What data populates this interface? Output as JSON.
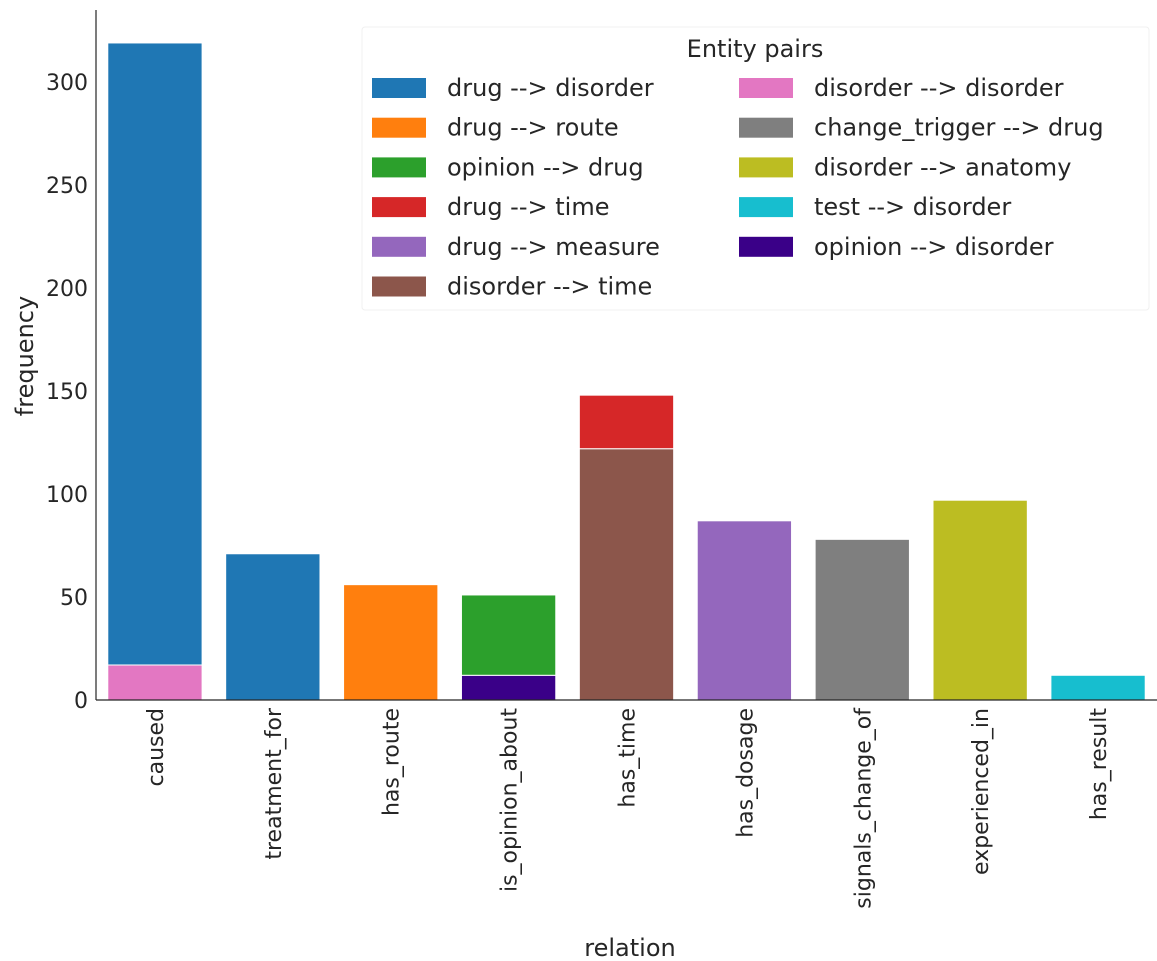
{
  "chart_data": {
    "type": "bar",
    "stacked": true,
    "xlabel": "relation",
    "ylabel": "frequency",
    "ylim": [
      0,
      335
    ],
    "yticks": [
      0,
      50,
      100,
      150,
      200,
      250,
      300
    ],
    "categories": [
      "caused",
      "treatment_for",
      "has_route",
      "is_opinion_about",
      "has_time",
      "has_dosage",
      "signals_change_of",
      "experienced_in",
      "has_result"
    ],
    "legend": {
      "title": "Entity pairs",
      "placement": "top-right",
      "columns": 2
    },
    "series": [
      {
        "name": "drug --> disorder",
        "color": "#1f77b4",
        "values": [
          302,
          71,
          0,
          0,
          0,
          0,
          0,
          0,
          0
        ]
      },
      {
        "name": "drug --> route",
        "color": "#ff7f0e",
        "values": [
          0,
          0,
          56,
          0,
          0,
          0,
          0,
          0,
          0
        ]
      },
      {
        "name": "opinion --> drug",
        "color": "#2ca02c",
        "values": [
          0,
          0,
          0,
          39,
          0,
          0,
          0,
          0,
          0
        ]
      },
      {
        "name": "drug --> time",
        "color": "#d62728",
        "values": [
          0,
          0,
          0,
          0,
          26,
          0,
          0,
          0,
          0
        ]
      },
      {
        "name": "drug --> measure",
        "color": "#9467bd",
        "values": [
          0,
          0,
          0,
          0,
          0,
          87,
          0,
          0,
          0
        ]
      },
      {
        "name": "disorder --> time",
        "color": "#8c564b",
        "values": [
          0,
          0,
          0,
          0,
          122,
          0,
          0,
          0,
          0
        ]
      },
      {
        "name": "disorder --> disorder",
        "color": "#e377c2",
        "values": [
          17,
          0,
          0,
          0,
          0,
          0,
          0,
          0,
          0
        ]
      },
      {
        "name": "change_trigger --> drug",
        "color": "#7f7f7f",
        "values": [
          0,
          0,
          0,
          0,
          0,
          0,
          78,
          0,
          0
        ]
      },
      {
        "name": "disorder --> anatomy",
        "color": "#bcbd22",
        "values": [
          0,
          0,
          0,
          0,
          0,
          0,
          0,
          97,
          0
        ]
      },
      {
        "name": "test --> disorder",
        "color": "#17becf",
        "values": [
          0,
          0,
          0,
          0,
          0,
          0,
          0,
          0,
          12
        ]
      },
      {
        "name": "opinion --> disorder",
        "color": "#3a0088",
        "values": [
          0,
          0,
          0,
          12,
          0,
          0,
          0,
          0,
          0
        ]
      }
    ],
    "stack_order": [
      6,
      10,
      5,
      0,
      1,
      2,
      3,
      4,
      7,
      8,
      9
    ],
    "grid": false
  }
}
